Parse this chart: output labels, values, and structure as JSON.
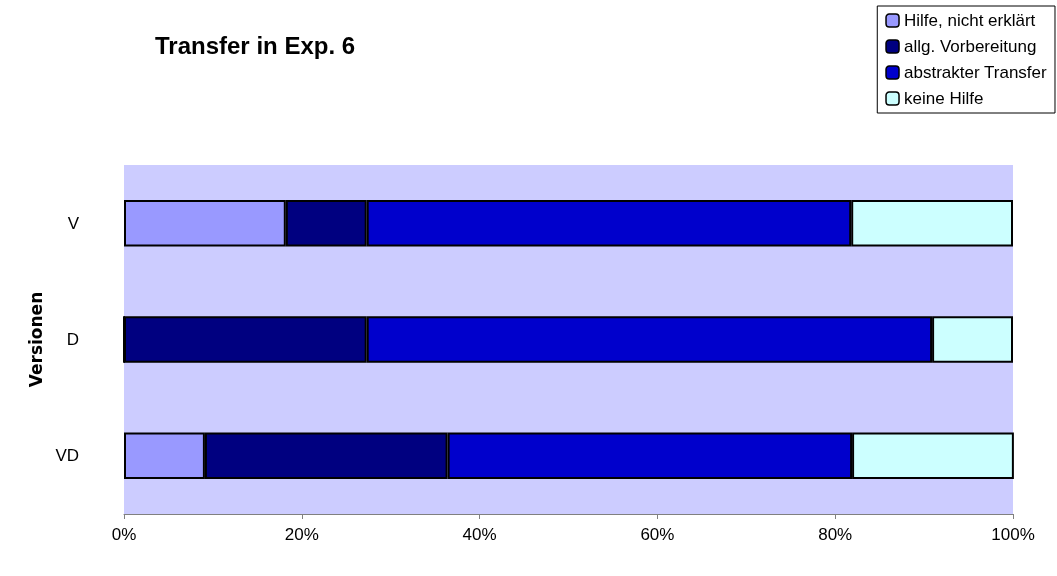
{
  "chart_data": {
    "type": "bar",
    "title": "Transfer in Exp. 6",
    "ylabel": "Versionen",
    "orientation": "horizontal",
    "stacked": true,
    "categories": [
      "V",
      "D",
      "VD"
    ],
    "series": [
      {
        "name": "Hilfe, nicht erklärt",
        "color": "#9999ff",
        "values": [
          18.2,
          0,
          9.1
        ]
      },
      {
        "name": "allg. Vorbereitung",
        "color": "#000080",
        "values": [
          9.1,
          27.3,
          27.3
        ]
      },
      {
        "name": "abstrakter Transfer",
        "color": "#0000cc",
        "values": [
          54.5,
          63.6,
          45.5
        ]
      },
      {
        "name": "keine Hilfe",
        "color": "#ccffff",
        "values": [
          18.2,
          9.1,
          18.2
        ]
      }
    ],
    "xlim": [
      0,
      100
    ],
    "xticks": [
      {
        "value": 0,
        "label": "0%"
      },
      {
        "value": 20,
        "label": "20%"
      },
      {
        "value": 40,
        "label": "40%"
      },
      {
        "value": 60,
        "label": "60%"
      },
      {
        "value": 80,
        "label": "80%"
      },
      {
        "value": 100,
        "label": "100%"
      }
    ],
    "grid": false,
    "legend": "top right"
  }
}
